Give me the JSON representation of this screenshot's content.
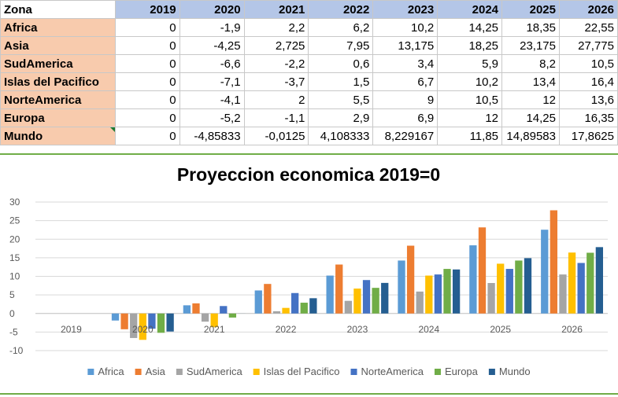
{
  "table": {
    "header": [
      "Zona",
      "2019",
      "2020",
      "2021",
      "2022",
      "2023",
      "2024",
      "2025",
      "2026"
    ],
    "rows": [
      [
        "Africa",
        "0",
        "-1,9",
        "2,2",
        "6,2",
        "10,2",
        "14,25",
        "18,35",
        "22,55"
      ],
      [
        "Asia",
        "0",
        "-4,25",
        "2,725",
        "7,95",
        "13,175",
        "18,25",
        "23,175",
        "27,775"
      ],
      [
        "SudAmerica",
        "0",
        "-6,6",
        "-2,2",
        "0,6",
        "3,4",
        "5,9",
        "8,2",
        "10,5"
      ],
      [
        "Islas del Pacifico",
        "0",
        "-7,1",
        "-3,7",
        "1,5",
        "6,7",
        "10,2",
        "13,4",
        "16,4"
      ],
      [
        "NorteAmerica",
        "0",
        "-4,1",
        "2",
        "5,5",
        "9",
        "10,5",
        "12",
        "13,6"
      ],
      [
        "Europa",
        "0",
        "-5,2",
        "-1,1",
        "2,9",
        "6,9",
        "12",
        "14,25",
        "16,35"
      ],
      [
        "Mundo",
        "0",
        "-4,85833",
        "-0,0125",
        "4,108333",
        "8,229167",
        "11,85",
        "14,89583",
        "17,8625"
      ]
    ]
  },
  "chart_data": {
    "type": "bar",
    "title": "Proyeccion economica 2019=0",
    "categories": [
      "2019",
      "2020",
      "2021",
      "2022",
      "2023",
      "2024",
      "2025",
      "2026"
    ],
    "series": [
      {
        "name": "Africa",
        "color": "#5b9bd5",
        "values": [
          0,
          -1.9,
          2.2,
          6.2,
          10.2,
          14.25,
          18.35,
          22.55
        ]
      },
      {
        "name": "Asia",
        "color": "#ed7d31",
        "values": [
          0,
          -4.25,
          2.725,
          7.95,
          13.175,
          18.25,
          23.175,
          27.775
        ]
      },
      {
        "name": "SudAmerica",
        "color": "#a5a5a5",
        "values": [
          0,
          -6.6,
          -2.2,
          0.6,
          3.4,
          5.9,
          8.2,
          10.5
        ]
      },
      {
        "name": "Islas del Pacifico",
        "color": "#ffc000",
        "values": [
          0,
          -7.1,
          -3.7,
          1.5,
          6.7,
          10.2,
          13.4,
          16.4
        ]
      },
      {
        "name": "NorteAmerica",
        "color": "#4472c4",
        "values": [
          0,
          -4.1,
          2,
          5.5,
          9,
          10.5,
          12,
          13.6
        ]
      },
      {
        "name": "Europa",
        "color": "#70ad47",
        "values": [
          0,
          -5.2,
          -1.1,
          2.9,
          6.9,
          12,
          14.25,
          16.35
        ]
      },
      {
        "name": "Mundo",
        "color": "#255e91",
        "values": [
          0,
          -4.85833,
          -0.0125,
          4.108333,
          8.229167,
          11.85,
          14.89583,
          17.8625
        ]
      }
    ],
    "ylim": [
      -10,
      30
    ],
    "yticks": [
      "-10",
      "-5",
      "0",
      "5",
      "10",
      "15",
      "20",
      "25",
      "30"
    ],
    "grid": true,
    "legend": "bottom"
  }
}
